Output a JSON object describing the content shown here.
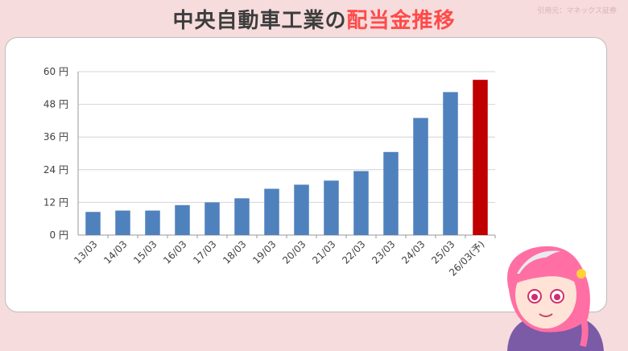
{
  "header": {
    "title_main": "中央自動車工業の",
    "title_accent": "配当金推移",
    "source": "引用元：マネックス証券"
  },
  "colors": {
    "background": "#f6dcdc",
    "bar": "#4f81bd",
    "highlight": "#c00000",
    "title_accent": "#ff4a4a"
  },
  "chart_data": {
    "type": "bar",
    "categories": [
      "13/03",
      "14/03",
      "15/03",
      "16/03",
      "17/03",
      "18/03",
      "19/03",
      "20/03",
      "21/03",
      "22/03",
      "23/03",
      "24/03",
      "25/03",
      "26/03(予)"
    ],
    "values": [
      8.5,
      9,
      9,
      11,
      12,
      13.5,
      17,
      18.5,
      20,
      23.5,
      30.5,
      43,
      52.5,
      57
    ],
    "highlight_index": 13,
    "ylim": [
      0,
      60
    ],
    "yticks": [
      "0 円",
      "12 円",
      "24 円",
      "36 円",
      "48 円",
      "60 円"
    ],
    "grid": true,
    "legend": "none"
  },
  "mascot": {
    "icon": "anime-girl-avatar"
  }
}
